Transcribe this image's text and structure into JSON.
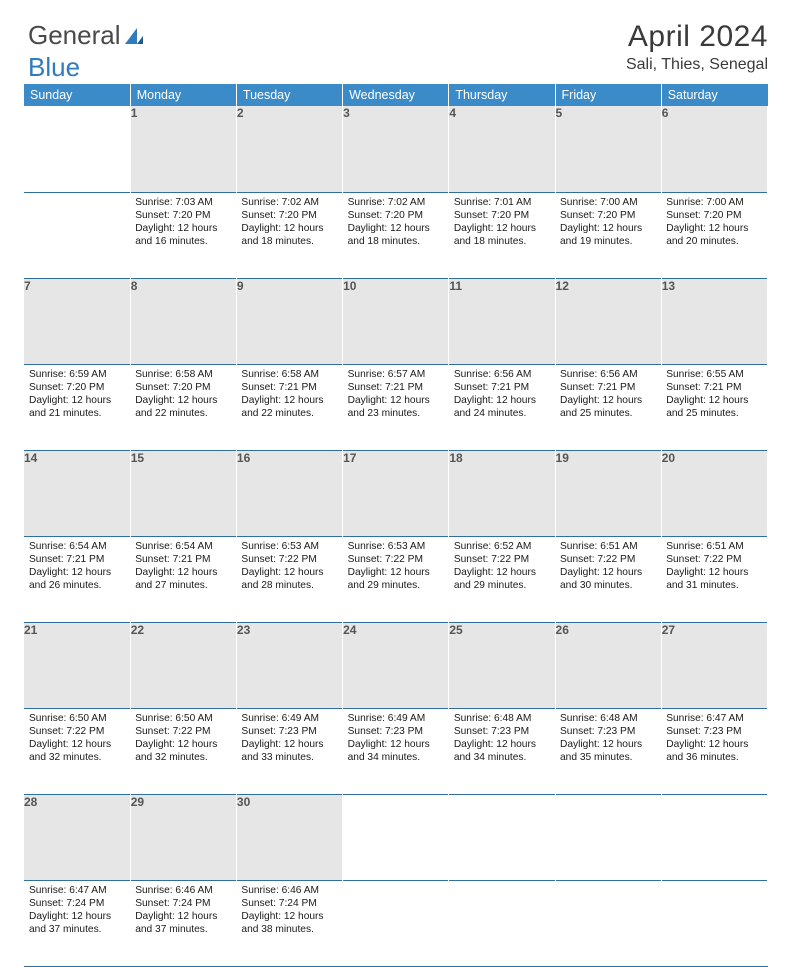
{
  "brand": {
    "part1": "General",
    "part2": "Blue"
  },
  "colors": {
    "header_bg": "#3b8bc8",
    "header_text": "#ffffff",
    "daynum_bg": "#e6e6e6",
    "daynum_text": "#555555",
    "row_border": "#2f6fa0",
    "body_text": "#1a1a1a",
    "brand_grey": "#4a4a4a",
    "brand_blue": "#2f7bbf",
    "background": "#ffffff"
  },
  "title": "April 2024",
  "location": "Sali, Thies, Senegal",
  "weekdays": [
    "Sunday",
    "Monday",
    "Tuesday",
    "Wednesday",
    "Thursday",
    "Friday",
    "Saturday"
  ],
  "weeks": [
    {
      "nums": [
        "",
        "1",
        "2",
        "3",
        "4",
        "5",
        "6"
      ],
      "cells": [
        {
          "empty": true
        },
        {
          "sunrise": "7:03 AM",
          "sunset": "7:20 PM",
          "daylight": "12 hours and 16 minutes."
        },
        {
          "sunrise": "7:02 AM",
          "sunset": "7:20 PM",
          "daylight": "12 hours and 18 minutes."
        },
        {
          "sunrise": "7:02 AM",
          "sunset": "7:20 PM",
          "daylight": "12 hours and 18 minutes."
        },
        {
          "sunrise": "7:01 AM",
          "sunset": "7:20 PM",
          "daylight": "12 hours and 18 minutes."
        },
        {
          "sunrise": "7:00 AM",
          "sunset": "7:20 PM",
          "daylight": "12 hours and 19 minutes."
        },
        {
          "sunrise": "7:00 AM",
          "sunset": "7:20 PM",
          "daylight": "12 hours and 20 minutes."
        }
      ]
    },
    {
      "nums": [
        "7",
        "8",
        "9",
        "10",
        "11",
        "12",
        "13"
      ],
      "cells": [
        {
          "sunrise": "6:59 AM",
          "sunset": "7:20 PM",
          "daylight": "12 hours and 21 minutes."
        },
        {
          "sunrise": "6:58 AM",
          "sunset": "7:20 PM",
          "daylight": "12 hours and 22 minutes."
        },
        {
          "sunrise": "6:58 AM",
          "sunset": "7:21 PM",
          "daylight": "12 hours and 22 minutes."
        },
        {
          "sunrise": "6:57 AM",
          "sunset": "7:21 PM",
          "daylight": "12 hours and 23 minutes."
        },
        {
          "sunrise": "6:56 AM",
          "sunset": "7:21 PM",
          "daylight": "12 hours and 24 minutes."
        },
        {
          "sunrise": "6:56 AM",
          "sunset": "7:21 PM",
          "daylight": "12 hours and 25 minutes."
        },
        {
          "sunrise": "6:55 AM",
          "sunset": "7:21 PM",
          "daylight": "12 hours and 25 minutes."
        }
      ]
    },
    {
      "nums": [
        "14",
        "15",
        "16",
        "17",
        "18",
        "19",
        "20"
      ],
      "cells": [
        {
          "sunrise": "6:54 AM",
          "sunset": "7:21 PM",
          "daylight": "12 hours and 26 minutes."
        },
        {
          "sunrise": "6:54 AM",
          "sunset": "7:21 PM",
          "daylight": "12 hours and 27 minutes."
        },
        {
          "sunrise": "6:53 AM",
          "sunset": "7:22 PM",
          "daylight": "12 hours and 28 minutes."
        },
        {
          "sunrise": "6:53 AM",
          "sunset": "7:22 PM",
          "daylight": "12 hours and 29 minutes."
        },
        {
          "sunrise": "6:52 AM",
          "sunset": "7:22 PM",
          "daylight": "12 hours and 29 minutes."
        },
        {
          "sunrise": "6:51 AM",
          "sunset": "7:22 PM",
          "daylight": "12 hours and 30 minutes."
        },
        {
          "sunrise": "6:51 AM",
          "sunset": "7:22 PM",
          "daylight": "12 hours and 31 minutes."
        }
      ]
    },
    {
      "nums": [
        "21",
        "22",
        "23",
        "24",
        "25",
        "26",
        "27"
      ],
      "cells": [
        {
          "sunrise": "6:50 AM",
          "sunset": "7:22 PM",
          "daylight": "12 hours and 32 minutes."
        },
        {
          "sunrise": "6:50 AM",
          "sunset": "7:22 PM",
          "daylight": "12 hours and 32 minutes."
        },
        {
          "sunrise": "6:49 AM",
          "sunset": "7:23 PM",
          "daylight": "12 hours and 33 minutes."
        },
        {
          "sunrise": "6:49 AM",
          "sunset": "7:23 PM",
          "daylight": "12 hours and 34 minutes."
        },
        {
          "sunrise": "6:48 AM",
          "sunset": "7:23 PM",
          "daylight": "12 hours and 34 minutes."
        },
        {
          "sunrise": "6:48 AM",
          "sunset": "7:23 PM",
          "daylight": "12 hours and 35 minutes."
        },
        {
          "sunrise": "6:47 AM",
          "sunset": "7:23 PM",
          "daylight": "12 hours and 36 minutes."
        }
      ]
    },
    {
      "nums": [
        "28",
        "29",
        "30",
        "",
        "",
        "",
        ""
      ],
      "cells": [
        {
          "sunrise": "6:47 AM",
          "sunset": "7:24 PM",
          "daylight": "12 hours and 37 minutes."
        },
        {
          "sunrise": "6:46 AM",
          "sunset": "7:24 PM",
          "daylight": "12 hours and 37 minutes."
        },
        {
          "sunrise": "6:46 AM",
          "sunset": "7:24 PM",
          "daylight": "12 hours and 38 minutes."
        },
        {
          "empty": true
        },
        {
          "empty": true
        },
        {
          "empty": true
        },
        {
          "empty": true
        }
      ]
    }
  ],
  "labels": {
    "sunrise": "Sunrise: ",
    "sunset": "Sunset: ",
    "daylight": "Daylight: "
  }
}
